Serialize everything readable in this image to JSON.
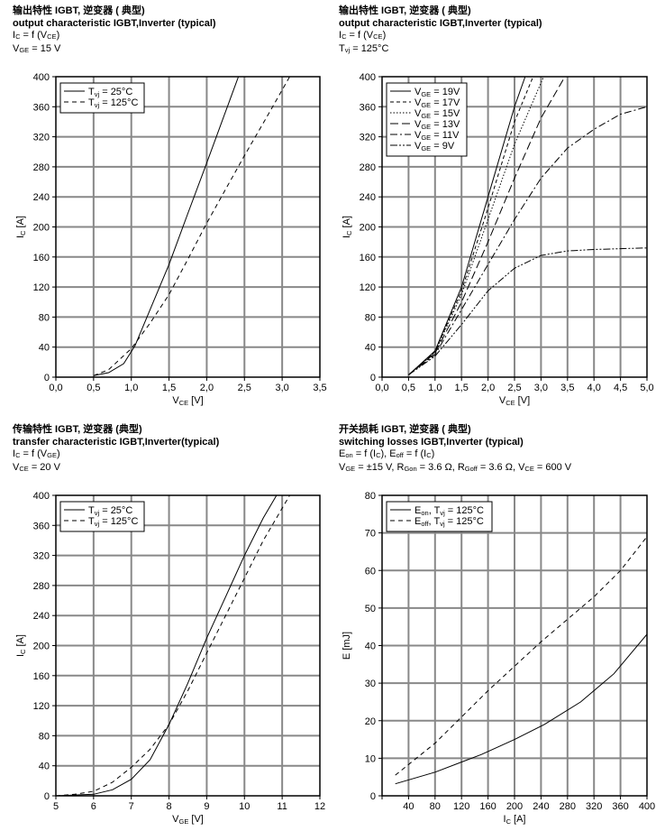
{
  "headers": [
    {
      "lines": [
        [
          {
            "t": "输出特性 IGBT, 逆变器 ( 典型)"
          }
        ],
        [
          {
            "t": "output characteristic IGBT,Inverter (typical)"
          }
        ],
        [
          {
            "t": "I"
          },
          {
            "t": "C",
            "sub": true
          },
          {
            "t": " = f (V"
          },
          {
            "t": "CE",
            "sub": true
          },
          {
            "t": ")"
          }
        ],
        [
          {
            "t": "V"
          },
          {
            "t": "GE",
            "sub": true
          },
          {
            "t": " = 15 V"
          }
        ]
      ]
    },
    {
      "lines": [
        [
          {
            "t": "输出特性 IGBT, 逆变器 ( 典型)"
          }
        ],
        [
          {
            "t": "output characteristic IGBT,Inverter (typical)"
          }
        ],
        [
          {
            "t": "I"
          },
          {
            "t": "C",
            "sub": true
          },
          {
            "t": " = f (V"
          },
          {
            "t": "CE",
            "sub": true
          },
          {
            "t": ")"
          }
        ],
        [
          {
            "t": "T"
          },
          {
            "t": "vj",
            "sub": true
          },
          {
            "t": " = 125°C"
          }
        ]
      ]
    },
    {
      "lines": [
        [
          {
            "t": "传输特性 IGBT, 逆变器 (典型)"
          }
        ],
        [
          {
            "t": "transfer characteristic  IGBT,Inverter(typical)"
          }
        ],
        [
          {
            "t": "I"
          },
          {
            "t": "C",
            "sub": true
          },
          {
            "t": " = f (V"
          },
          {
            "t": "GE",
            "sub": true
          },
          {
            "t": ")"
          }
        ],
        [
          {
            "t": "V"
          },
          {
            "t": "CE",
            "sub": true
          },
          {
            "t": " = 20 V"
          }
        ]
      ]
    },
    {
      "lines": [
        [
          {
            "t": "开关损耗 IGBT, 逆变器 ( 典型)"
          }
        ],
        [
          {
            "t": "switching losses  IGBT,Inverter (typical)"
          }
        ],
        [
          {
            "t": "E"
          },
          {
            "t": "on",
            "sub": true
          },
          {
            "t": " = f (I"
          },
          {
            "t": "C",
            "sub": true
          },
          {
            "t": "), E"
          },
          {
            "t": "off",
            "sub": true
          },
          {
            "t": " = f (I"
          },
          {
            "t": "C",
            "sub": true
          },
          {
            "t": ")"
          }
        ],
        [
          {
            "t": "V"
          },
          {
            "t": "GE",
            "sub": true
          },
          {
            "t": " = ±15 V, R"
          },
          {
            "t": "Gon",
            "sub": true
          },
          {
            "t": " = 3.6 Ω, R"
          },
          {
            "t": "Goff",
            "sub": true
          },
          {
            "t": " = 3.6 Ω, V"
          },
          {
            "t": "CE",
            "sub": true
          },
          {
            "t": " = 600 V"
          }
        ]
      ]
    }
  ],
  "chart_data": [
    {
      "type": "line",
      "xlabel": [
        {
          "t": "V"
        },
        {
          "t": "CE",
          "sub": true
        },
        {
          "t": " [V]"
        }
      ],
      "ylabel": [
        {
          "t": "I"
        },
        {
          "t": "C",
          "sub": true
        },
        {
          "t": " [A]"
        }
      ],
      "xlim": [
        0,
        3.5
      ],
      "ylim": [
        0,
        400
      ],
      "xticks": [
        "0,0",
        "0,5",
        "1,0",
        "1,5",
        "2,0",
        "2,5",
        "3,0",
        "3,5"
      ],
      "yticks": [
        "0",
        "40",
        "80",
        "120",
        "160",
        "200",
        "240",
        "280",
        "320",
        "360",
        "400"
      ],
      "grid": true,
      "legend_position": "top-left",
      "series": [
        {
          "name": [
            {
              "t": "T"
            },
            {
              "t": "vj",
              "sub": true
            },
            {
              "t": " = 25°C"
            }
          ],
          "style": "solid",
          "points": [
            [
              0.5,
              2
            ],
            [
              0.7,
              6
            ],
            [
              0.9,
              18
            ],
            [
              1.05,
              42
            ],
            [
              1.25,
              90
            ],
            [
              1.5,
              150
            ],
            [
              1.75,
              218
            ],
            [
              2.0,
              285
            ],
            [
              2.2,
              340
            ],
            [
              2.42,
              400
            ]
          ]
        },
        {
          "name": [
            {
              "t": "T"
            },
            {
              "t": "vj",
              "sub": true
            },
            {
              "t": " = 125°C"
            }
          ],
          "style": "dashed",
          "points": [
            [
              0.5,
              2
            ],
            [
              0.7,
              10
            ],
            [
              1.0,
              38
            ],
            [
              1.25,
              72
            ],
            [
              1.5,
              110
            ],
            [
              1.75,
              157
            ],
            [
              2.0,
              205
            ],
            [
              2.5,
              295
            ],
            [
              2.8,
              347
            ],
            [
              3.1,
              400
            ]
          ]
        }
      ]
    },
    {
      "type": "line",
      "xlabel": [
        {
          "t": "V"
        },
        {
          "t": "CE",
          "sub": true
        },
        {
          "t": " [V]"
        }
      ],
      "ylabel": [
        {
          "t": "I"
        },
        {
          "t": "C",
          "sub": true
        },
        {
          "t": " [A]"
        }
      ],
      "xlim": [
        0,
        5
      ],
      "ylim": [
        0,
        400
      ],
      "xticks": [
        "0,0",
        "0,5",
        "1,0",
        "1,5",
        "2,0",
        "2,5",
        "3,0",
        "3,5",
        "4,0",
        "4,5",
        "5,0"
      ],
      "yticks": [
        "0",
        "40",
        "80",
        "120",
        "160",
        "200",
        "240",
        "280",
        "320",
        "360",
        "400"
      ],
      "grid": true,
      "legend_position": "top-left",
      "series": [
        {
          "name": [
            {
              "t": "V"
            },
            {
              "t": "GE",
              "sub": true
            },
            {
              "t": " = 19V"
            }
          ],
          "style": "solid",
          "points": [
            [
              0.5,
              3
            ],
            [
              1.0,
              35
            ],
            [
              1.5,
              120
            ],
            [
              2.0,
              240
            ],
            [
              2.5,
              360
            ],
            [
              2.7,
              400
            ]
          ]
        },
        {
          "name": [
            {
              "t": "V"
            },
            {
              "t": "GE",
              "sub": true
            },
            {
              "t": " = 17V"
            }
          ],
          "style": "dash",
          "points": [
            [
              0.5,
              3
            ],
            [
              1.0,
              34
            ],
            [
              1.5,
              115
            ],
            [
              2.0,
              225
            ],
            [
              2.5,
              340
            ],
            [
              2.85,
              400
            ]
          ]
        },
        {
          "name": [
            {
              "t": "V"
            },
            {
              "t": "GE",
              "sub": true
            },
            {
              "t": " = 15V"
            }
          ],
          "style": "dot",
          "points": [
            [
              0.5,
              3
            ],
            [
              1.0,
              33
            ],
            [
              1.5,
              110
            ],
            [
              2.0,
              210
            ],
            [
              2.5,
              310
            ],
            [
              3.05,
              400
            ]
          ]
        },
        {
          "name": [
            {
              "t": "V"
            },
            {
              "t": "GE",
              "sub": true
            },
            {
              "t": " = 13V"
            }
          ],
          "style": "longdash",
          "points": [
            [
              0.5,
              3
            ],
            [
              1.0,
              32
            ],
            [
              1.5,
              100
            ],
            [
              2.0,
              180
            ],
            [
              2.5,
              265
            ],
            [
              3.0,
              345
            ],
            [
              3.45,
              400
            ]
          ]
        },
        {
          "name": [
            {
              "t": "V"
            },
            {
              "t": "GE",
              "sub": true
            },
            {
              "t": " = 11V"
            }
          ],
          "style": "dashdot",
          "points": [
            [
              0.5,
              3
            ],
            [
              1.0,
              30
            ],
            [
              1.5,
              90
            ],
            [
              2.0,
              150
            ],
            [
              2.5,
              210
            ],
            [
              3.0,
              265
            ],
            [
              3.5,
              305
            ],
            [
              4.0,
              330
            ],
            [
              4.5,
              350
            ],
            [
              5.0,
              360
            ]
          ]
        },
        {
          "name": [
            {
              "t": "V"
            },
            {
              "t": "GE",
              "sub": true
            },
            {
              "t": " = 9V"
            }
          ],
          "style": "dashdotdot",
          "points": [
            [
              0.5,
              3
            ],
            [
              1.0,
              28
            ],
            [
              1.5,
              70
            ],
            [
              2.0,
              115
            ],
            [
              2.5,
              145
            ],
            [
              3.0,
              162
            ],
            [
              3.5,
              168
            ],
            [
              4.0,
              170
            ],
            [
              4.5,
              171
            ],
            [
              5.0,
              172
            ]
          ]
        }
      ]
    },
    {
      "type": "line",
      "xlabel": [
        {
          "t": "V"
        },
        {
          "t": "GE",
          "sub": true
        },
        {
          "t": " [V]"
        }
      ],
      "ylabel": [
        {
          "t": "I"
        },
        {
          "t": "C",
          "sub": true
        },
        {
          "t": " [A]"
        }
      ],
      "xlim": [
        5,
        12
      ],
      "ylim": [
        0,
        400
      ],
      "xticks": [
        "5",
        "6",
        "7",
        "8",
        "9",
        "10",
        "11",
        "12"
      ],
      "yticks": [
        "0",
        "40",
        "80",
        "120",
        "160",
        "200",
        "240",
        "280",
        "320",
        "360",
        "400"
      ],
      "grid": true,
      "legend_position": "top-left",
      "series": [
        {
          "name": [
            {
              "t": "T"
            },
            {
              "t": "vj",
              "sub": true
            },
            {
              "t": " = 25°C"
            }
          ],
          "style": "solid",
          "points": [
            [
              5,
              0
            ],
            [
              6,
              2
            ],
            [
              6.5,
              8
            ],
            [
              7,
              22
            ],
            [
              7.5,
              48
            ],
            [
              8,
              95
            ],
            [
              8.5,
              150
            ],
            [
              9,
              210
            ],
            [
              9.5,
              265
            ],
            [
              10,
              320
            ],
            [
              10.5,
              370
            ],
            [
              10.85,
              400
            ]
          ]
        },
        {
          "name": [
            {
              "t": "T"
            },
            {
              "t": "vj",
              "sub": true
            },
            {
              "t": " = 125°C"
            }
          ],
          "style": "dashed",
          "points": [
            [
              5,
              0
            ],
            [
              5.5,
              2
            ],
            [
              6,
              6
            ],
            [
              6.5,
              18
            ],
            [
              7,
              38
            ],
            [
              7.5,
              62
            ],
            [
              8,
              95
            ],
            [
              8.5,
              140
            ],
            [
              9,
              190
            ],
            [
              9.5,
              240
            ],
            [
              10,
              290
            ],
            [
              10.5,
              340
            ],
            [
              11.2,
              400
            ]
          ]
        }
      ]
    },
    {
      "type": "line",
      "xlabel": [
        {
          "t": "I"
        },
        {
          "t": "C",
          "sub": true
        },
        {
          "t": " [A]"
        }
      ],
      "ylabel": [
        {
          "t": "E [mJ]"
        }
      ],
      "xlim": [
        0,
        400
      ],
      "ylim": [
        0,
        80
      ],
      "xticks": [
        "",
        "40",
        "80",
        "120",
        "160",
        "200",
        "240",
        "280",
        "320",
        "360",
        "400"
      ],
      "yticks": [
        "0",
        "10",
        "20",
        "30",
        "40",
        "50",
        "60",
        "70",
        "80"
      ],
      "grid": true,
      "legend_position": "top-left",
      "series": [
        {
          "name": [
            {
              "t": "E"
            },
            {
              "t": "on",
              "sub": true
            },
            {
              "t": ", T"
            },
            {
              "t": "vj",
              "sub": true
            },
            {
              "t": " = 125°C"
            }
          ],
          "style": "solid",
          "points": [
            [
              20,
              3.2
            ],
            [
              80,
              6.3
            ],
            [
              150,
              11
            ],
            [
              200,
              15
            ],
            [
              245,
              19
            ],
            [
              300,
              25
            ],
            [
              350,
              32.5
            ],
            [
              400,
              43
            ]
          ]
        },
        {
          "name": [
            {
              "t": "E"
            },
            {
              "t": "off",
              "sub": true
            },
            {
              "t": ", T"
            },
            {
              "t": "vj",
              "sub": true
            },
            {
              "t": " = 125°C"
            }
          ],
          "style": "dashed",
          "points": [
            [
              20,
              5.5
            ],
            [
              80,
              14
            ],
            [
              160,
              28
            ],
            [
              240,
              41
            ],
            [
              320,
              53
            ],
            [
              360,
              60
            ],
            [
              400,
              69
            ]
          ]
        }
      ]
    }
  ]
}
